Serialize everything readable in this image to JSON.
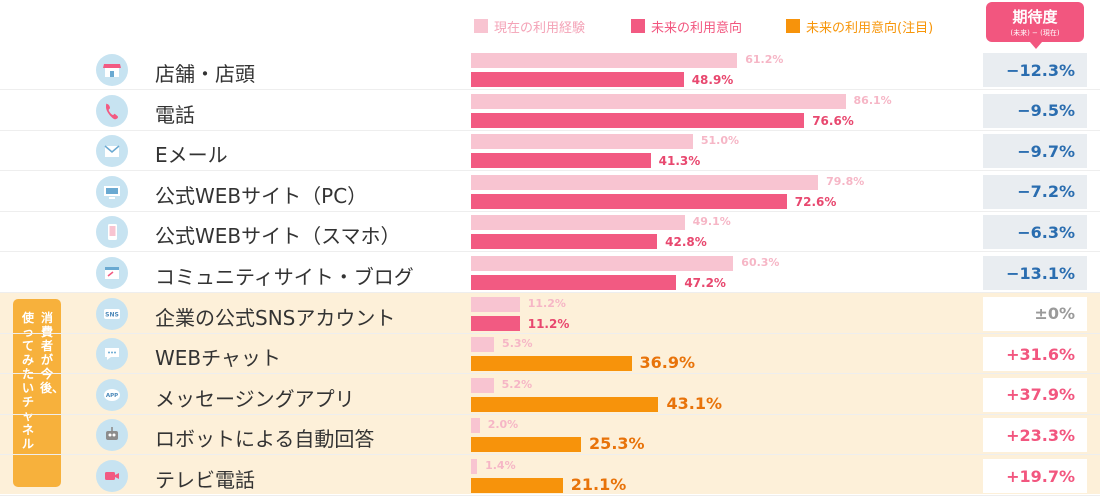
{
  "legend": {
    "current": "現在の利用経験",
    "future": "未来の利用意向",
    "future_focus": "未来の利用意向(注目)"
  },
  "expectation_header": {
    "title": "期待度",
    "subtitle": "(未来) − (現在)"
  },
  "side_tag": {
    "col1": "消費者が今後、",
    "col2": "使ってみたいチャネル"
  },
  "colors": {
    "current": "#f8c4d1",
    "future": "#f25a82",
    "future_focus": "#f7930b",
    "negative_text": "#2a6db0",
    "positive_text": "#f2567f"
  },
  "chart_data": {
    "type": "bar",
    "categories": [
      "店舗・店頭",
      "電話",
      "Eメール",
      "公式WEBサイト（PC）",
      "公式WEBサイト（スマホ）",
      "コミュニティサイト・ブログ",
      "企業の公式SNSアカウント",
      "WEBチャット",
      "メッセージングアプリ",
      "ロボットによる自動回答",
      "テレビ電話"
    ],
    "series": [
      {
        "name": "現在の利用経験",
        "values": [
          61.2,
          86.1,
          51.0,
          79.8,
          49.1,
          60.3,
          11.2,
          5.3,
          5.2,
          2.0,
          1.4
        ]
      },
      {
        "name": "未来の利用意向",
        "values": [
          48.9,
          76.6,
          41.3,
          72.6,
          42.8,
          47.2,
          11.2,
          36.9,
          43.1,
          25.3,
          21.1
        ]
      }
    ],
    "expectation": [
      "−12.3%",
      "−9.5%",
      "−9.7%",
      "−7.2%",
      "−6.3%",
      "−13.1%",
      "±0%",
      "+31.6%",
      "+37.9%",
      "+23.3%",
      "+19.7%"
    ],
    "current_labels": [
      "61.2%",
      "86.1%",
      "51.0%",
      "79.8%",
      "49.1%",
      "60.3%",
      "11.2%",
      "5.3%",
      "5.2%",
      "2.0%",
      "1.4%"
    ],
    "future_labels": [
      "48.9%",
      "76.6%",
      "41.3%",
      "72.6%",
      "42.8%",
      "47.2%",
      "11.2%",
      "36.9%",
      "43.1%",
      "25.3%",
      "21.1%"
    ],
    "focus_from_index": 7,
    "icons": [
      "store-icon",
      "phone-icon",
      "mail-icon",
      "pc-icon",
      "smartphone-icon",
      "blog-icon",
      "sns-icon",
      "chat-icon",
      "app-icon",
      "robot-icon",
      "video-call-icon"
    ],
    "xlim": [
      0,
      100
    ],
    "title": "",
    "xlabel": "",
    "ylabel": ""
  }
}
